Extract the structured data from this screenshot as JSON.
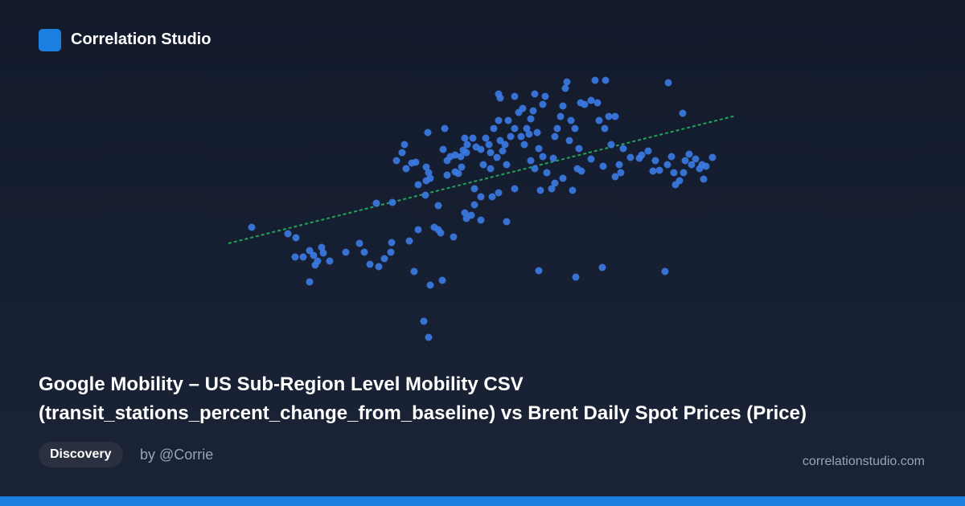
{
  "brand": "Correlation Studio",
  "tag": "Discovery",
  "author": "by @Corrie",
  "site": "correlationstudio.com",
  "chart_data": {
    "type": "scatter",
    "title": "Google Mobility – US Sub-Region Level Mobility CSV (transit_stations_percent_change_from_baseline) vs Brent Daily Spot Prices (Price)",
    "color": "#3b7be6",
    "xlim": [
      0,
      640
    ],
    "ylim": [
      0,
      340
    ],
    "x": [
      33,
      78,
      88,
      87,
      97,
      105,
      110,
      115,
      112,
      120,
      122,
      130,
      105,
      150,
      167,
      173,
      180,
      191,
      198,
      206,
      207,
      229,
      235,
      240,
      255,
      270,
      247,
      253,
      260,
      268,
      265,
      284,
      265,
      188,
      208,
      249,
      240,
      213,
      220,
      223,
      225,
      232,
      237,
      250,
      253,
      250,
      255,
      252,
      273,
      271,
      276,
      280,
      276,
      286,
      290,
      294,
      286,
      293,
      296,
      301,
      298,
      308,
      300,
      312,
      318,
      328,
      330,
      324,
      334,
      340,
      342,
      345,
      338,
      350,
      348,
      355,
      352,
      360,
      365,
      370,
      368,
      372,
      375,
      380,
      383,
      388,
      390,
      395,
      380,
      385,
      400,
      408,
      410,
      413,
      417,
      420,
      425,
      423,
      398,
      395,
      340,
      342,
      360,
      385,
      430,
      435,
      442,
      447,
      455,
      460,
      473,
      463,
      465,
      472,
      477,
      485,
      480,
      495,
      504,
      518,
      526,
      535,
      540,
      550,
      555,
      558,
      560,
      565,
      570,
      572,
      577,
      580,
      585,
      590,
      593,
      598,
      606,
      595,
      551,
      569,
      547,
      469,
      436,
      390,
      350,
      318,
      306,
      298,
      300,
      310,
      318,
      332,
      340,
      360,
      392,
      406,
      410,
      420,
      432,
      438,
      443,
      455,
      470,
      485,
      492,
      490,
      515,
      532,
      310,
      321,
      330,
      378,
      428,
      440
    ],
    "y": [
      147,
      139,
      134,
      110,
      110,
      118,
      112,
      105,
      100,
      122,
      115,
      105,
      79,
      116,
      127,
      116,
      101,
      98,
      108,
      116,
      128,
      130,
      92,
      144,
      75,
      81,
      30,
      10,
      147,
      140,
      144,
      135,
      174,
      177,
      178,
      187,
      200,
      230,
      240,
      250,
      220,
      227,
      228,
      222,
      215,
      205,
      208,
      265,
      270,
      244,
      230,
      235,
      212,
      216,
      214,
      222,
      237,
      235,
      243,
      250,
      258,
      258,
      240,
      247,
      244,
      250,
      240,
      258,
      270,
      280,
      255,
      242,
      234,
      225,
      250,
      260,
      280,
      270,
      290,
      295,
      260,
      250,
      270,
      282,
      292,
      265,
      245,
      235,
      230,
      220,
      215,
      233,
      260,
      270,
      285,
      298,
      328,
      320,
      310,
      300,
      313,
      308,
      310,
      313,
      280,
      270,
      302,
      300,
      305,
      330,
      330,
      302,
      280,
      270,
      285,
      285,
      250,
      245,
      234,
      237,
      242,
      230,
      218,
      225,
      235,
      215,
      200,
      205,
      215,
      230,
      238,
      225,
      232,
      220,
      225,
      223,
      234,
      207,
      327,
      289,
      92,
      97,
      85,
      93,
      154,
      156,
      162,
      165,
      158,
      175,
      185,
      185,
      190,
      195,
      193,
      195,
      202,
      208,
      193,
      220,
      217,
      232,
      223,
      210,
      215,
      225,
      233,
      217,
      195,
      225,
      220,
      263,
      255,
      245
    ],
    "trend": {
      "color": "#22a35a",
      "x": [
        4,
        635
      ],
      "y": [
        127,
        286
      ]
    }
  }
}
